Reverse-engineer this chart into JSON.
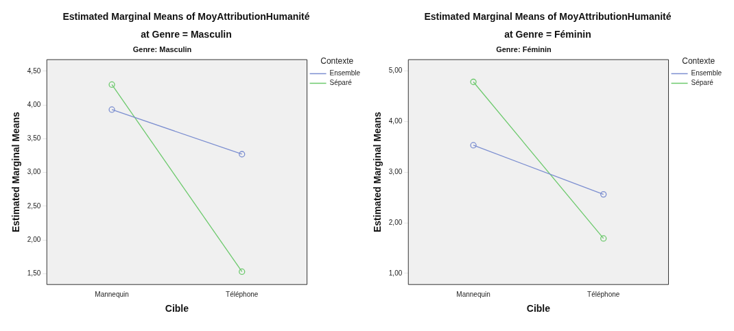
{
  "chart_data": [
    {
      "type": "line",
      "title": "Estimated Marginal Means of MoyAttributionHumanité",
      "subtitle": "at Genre = Masculin",
      "annotations": [
        "Genre: Masculin"
      ],
      "xlabel": "Cible",
      "ylabel": "Estimated Marginal Means",
      "legend_title": "Contexte",
      "legend": "top right",
      "grid": false,
      "marker": "circle",
      "line_style": "solid",
      "categories": [
        "Mannequin",
        "Téléphone"
      ],
      "series": [
        {
          "name": "Ensemble",
          "color": "#7b8ed0",
          "values": [
            3.93,
            3.27
          ]
        },
        {
          "name": "Séparé",
          "color": "#6cc96c",
          "values": [
            4.3,
            1.53
          ]
        }
      ],
      "ylim": [
        1.34,
        4.67
      ],
      "yticks": [
        {
          "value": 1.5,
          "label": "1,50"
        },
        {
          "value": 2,
          "label": "2,00"
        },
        {
          "value": 2.5,
          "label": "2,50"
        },
        {
          "value": 3,
          "label": "3,00"
        },
        {
          "value": 3.5,
          "label": "3,50"
        },
        {
          "value": 4,
          "label": "4,00"
        },
        {
          "value": 4.5,
          "label": "4,50"
        }
      ]
    },
    {
      "type": "line",
      "title": "Estimated Marginal Means of MoyAttributionHumanité",
      "subtitle": "at Genre = Féminin",
      "annotations": [
        "Genre: Féminin"
      ],
      "xlabel": "Cible",
      "ylabel": "Estimated Marginal Means",
      "legend_title": "Contexte",
      "legend": "top right",
      "grid": false,
      "marker": "circle",
      "line_style": "solid",
      "categories": [
        "Mannequin",
        "Téléphone"
      ],
      "series": [
        {
          "name": "Ensemble",
          "color": "#7b8ed0",
          "values": [
            3.53,
            2.56
          ]
        },
        {
          "name": "Séparé",
          "color": "#6cc96c",
          "values": [
            4.78,
            1.69
          ]
        }
      ],
      "ylim": [
        0.78,
        5.22
      ],
      "yticks": [
        {
          "value": 1,
          "label": "1,00"
        },
        {
          "value": 2,
          "label": "2,00"
        },
        {
          "value": 3,
          "label": "3,00"
        },
        {
          "value": 4,
          "label": "4,00"
        },
        {
          "value": 5,
          "label": "5,00"
        }
      ]
    }
  ]
}
